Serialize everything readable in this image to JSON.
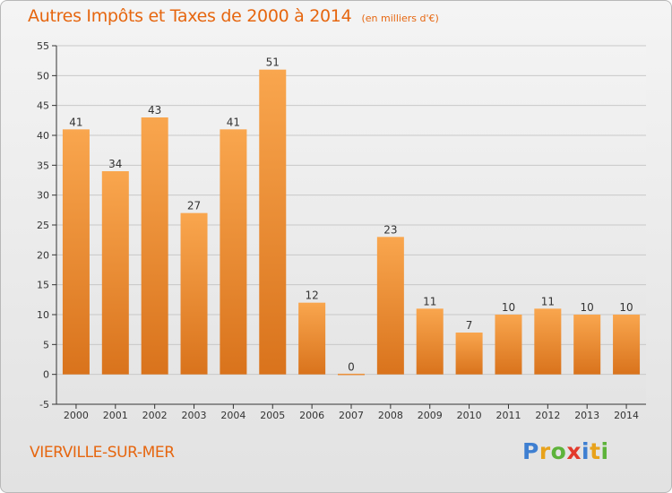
{
  "header": {
    "title": "Autres Impôts et Taxes de 2000 à 2014",
    "unit": "(en milliers d'€)"
  },
  "footer": {
    "commune": "VIERVILLE-SUR-MER",
    "brand_letters": [
      "P",
      "r",
      "o",
      "x",
      "i",
      "t",
      "i"
    ],
    "brand_colors": [
      "#3e7fd1",
      "#e8a21b",
      "#5db33a",
      "#e23a2c",
      "#3e7fd1",
      "#e8a21b",
      "#5db33a"
    ]
  },
  "colors": {
    "accent": "#e6660f",
    "bar_light": "#f9a64e",
    "bar_dark": "#d9731c"
  },
  "chart_data": {
    "type": "bar",
    "title": "Autres Impôts et Taxes de 2000 à 2014",
    "subtitle": "(en milliers d'€)",
    "categories": [
      "2000",
      "2001",
      "2002",
      "2003",
      "2004",
      "2005",
      "2006",
      "2007",
      "2008",
      "2009",
      "2010",
      "2011",
      "2012",
      "2013",
      "2014"
    ],
    "values": [
      41,
      34,
      43,
      27,
      41,
      51,
      12,
      0,
      23,
      11,
      7,
      10,
      11,
      10,
      10
    ],
    "ylim": [
      -5,
      55
    ],
    "yticks": [
      -5,
      0,
      5,
      10,
      15,
      20,
      25,
      30,
      35,
      40,
      45,
      50,
      55
    ],
    "grid": true,
    "legend": "none"
  }
}
